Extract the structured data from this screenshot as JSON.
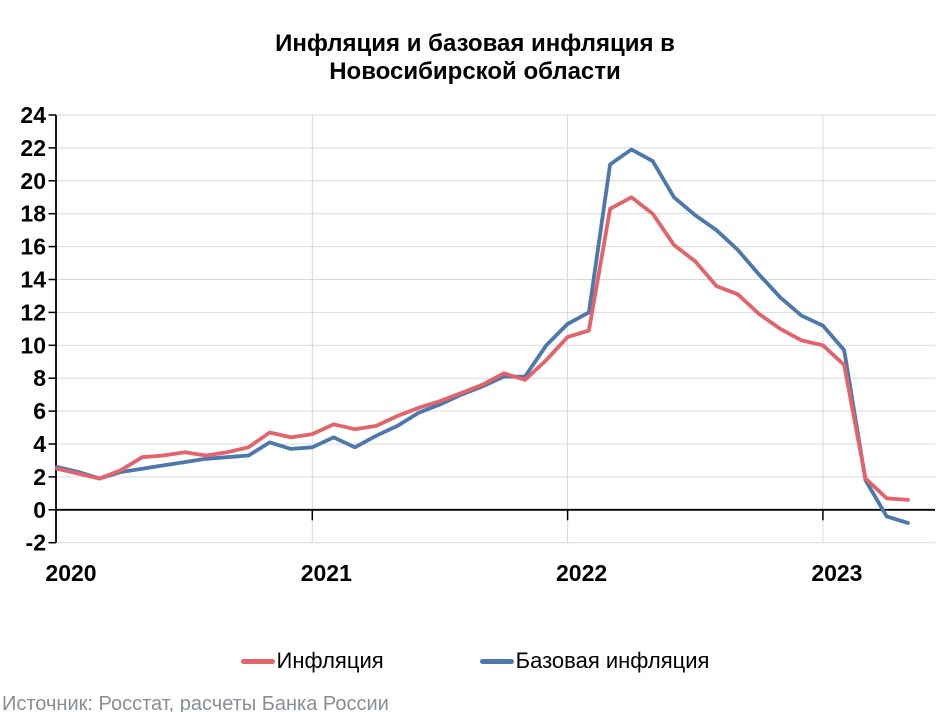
{
  "title": {
    "line1": "Инфляция и базовая инфляция в",
    "line2": "Новосибирской области"
  },
  "legend": {
    "items": [
      {
        "label": "Инфляция",
        "color": "#E2646A"
      },
      {
        "label": "Базовая инфляция",
        "color": "#4C78AD"
      }
    ]
  },
  "footer": {
    "source": "Источник: Росстат, расчеты Банка России"
  },
  "colors": {
    "grid": "#D9D9D9",
    "axis": "#000000",
    "tick_label": "#000000",
    "footer_text": "#878E97"
  },
  "chart_data": {
    "type": "line",
    "title": "Инфляция и базовая инфляция в Новосибирской области",
    "x_unit": "month",
    "x_start": "2020-01",
    "x_end": "2023-05",
    "x_tick_labels": [
      "2020",
      "2021",
      "2022",
      "2023"
    ],
    "y_ticks": [
      24,
      22,
      20,
      18,
      16,
      14,
      12,
      10,
      8,
      6,
      4,
      2,
      0,
      -2
    ],
    "ylim": [
      -2,
      24
    ],
    "grid": true,
    "legend_position": "bottom",
    "series": [
      {
        "name": "Базовая инфляция",
        "color": "#4C78AD",
        "values": [
          2.6,
          2.3,
          1.9,
          2.3,
          2.5,
          2.7,
          2.9,
          3.1,
          3.2,
          3.3,
          4.1,
          3.7,
          3.8,
          4.4,
          3.8,
          4.5,
          5.1,
          5.9,
          6.4,
          7.0,
          7.5,
          8.1,
          8.1,
          10.0,
          11.3,
          12.0,
          21.0,
          21.9,
          21.2,
          19.0,
          17.9,
          17.0,
          15.8,
          14.3,
          12.9,
          11.8,
          11.2,
          9.7,
          1.8,
          -0.4,
          -0.8
        ]
      },
      {
        "name": "Инфляция",
        "color": "#E2646A",
        "values": [
          2.5,
          2.2,
          1.9,
          2.4,
          3.2,
          3.3,
          3.5,
          3.3,
          3.5,
          3.8,
          4.7,
          4.4,
          4.6,
          5.2,
          4.9,
          5.1,
          5.7,
          6.2,
          6.6,
          7.1,
          7.6,
          8.3,
          7.9,
          9.1,
          10.5,
          10.9,
          18.3,
          19.0,
          18.0,
          16.1,
          15.1,
          13.6,
          13.1,
          11.9,
          11.0,
          10.3,
          10.0,
          8.8,
          1.9,
          0.7,
          0.6
        ]
      }
    ]
  }
}
